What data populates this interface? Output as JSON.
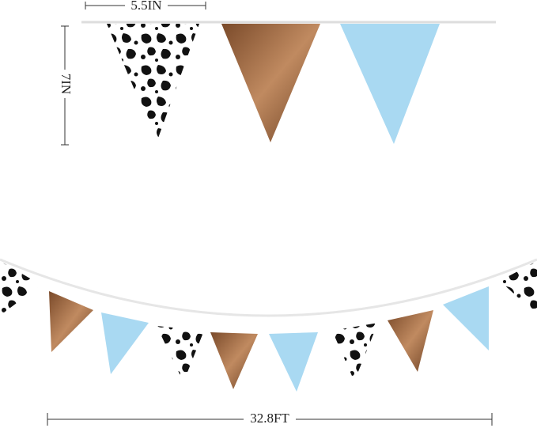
{
  "dimensions": {
    "width_label": "5.5IN",
    "height_label": "7IN",
    "length_label": "32.8FT"
  }
}
